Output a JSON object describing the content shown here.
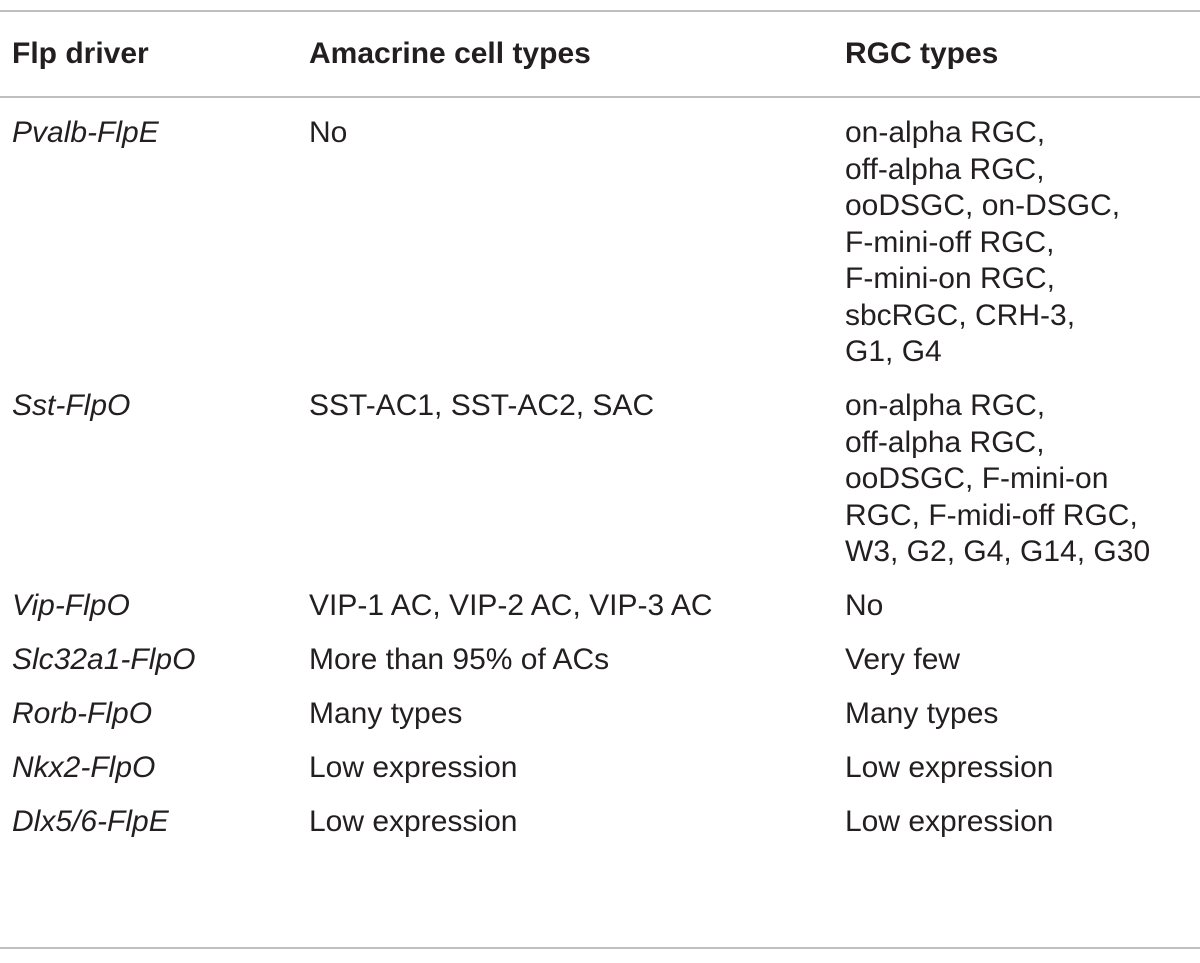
{
  "table": {
    "headers": [
      "Flp driver",
      "Amacrine cell types",
      "RGC types"
    ],
    "rows": [
      {
        "driver": "Pvalb-FlpE",
        "amacrine": [
          "No"
        ],
        "rgc": [
          "on-alpha RGC,",
          "off-alpha RGC,",
          "ooDSGC, on-DSGC,",
          "F-mini-off RGC,",
          "F-mini-on RGC,",
          "sbcRGC, CRH-3,",
          "G1, G4"
        ]
      },
      {
        "driver": "Sst-FlpO",
        "amacrine": [
          "SST-AC1, SST-AC2, SAC"
        ],
        "rgc": [
          "on-alpha RGC,",
          "off-alpha RGC,",
          "ooDSGC, F-mini-on",
          "RGC, F-midi-off RGC,",
          "W3, G2, G4, G14, G30"
        ]
      },
      {
        "driver": "Vip-FlpO",
        "amacrine": [
          "VIP-1 AC, VIP-2 AC, VIP-3 AC"
        ],
        "rgc": [
          "No"
        ]
      },
      {
        "driver": "Slc32a1-FlpO",
        "amacrine": [
          "More than 95% of ACs"
        ],
        "rgc": [
          "Very few"
        ]
      },
      {
        "driver": "Rorb-FlpO",
        "amacrine": [
          "Many types"
        ],
        "rgc": [
          "Many types"
        ]
      },
      {
        "driver": "Nkx2-FlpO",
        "amacrine": [
          "Low expression"
        ],
        "rgc": [
          "Low expression"
        ]
      },
      {
        "driver": "Dlx5/6-FlpE",
        "amacrine": [
          "Low expression"
        ],
        "rgc": [
          "Low expression"
        ]
      }
    ]
  }
}
